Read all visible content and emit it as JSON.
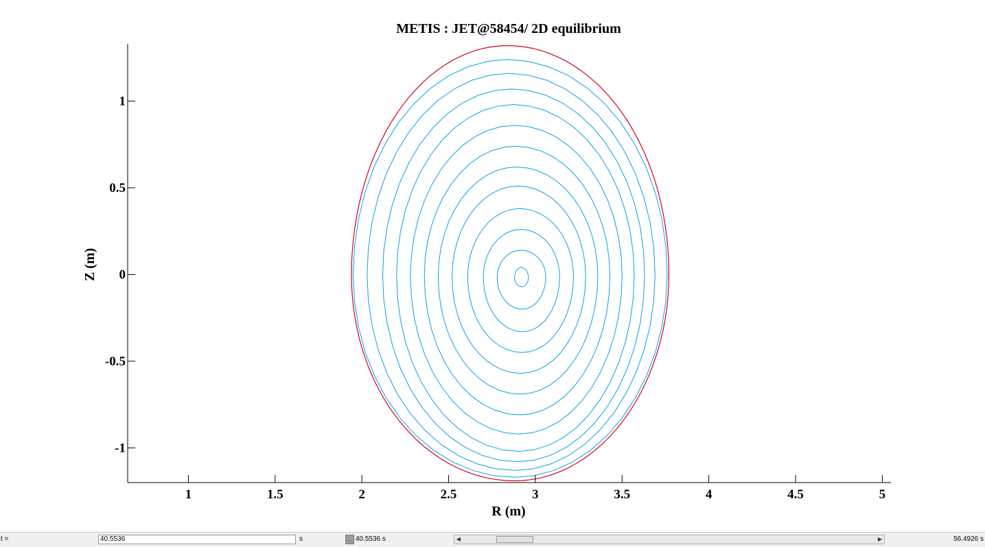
{
  "chart_data": {
    "type": "line",
    "title": "METIS : JET@58454/ 2D equilibrium",
    "xlabel": "R (m)",
    "ylabel": "Z (m)",
    "xlim": [
      0.65,
      5.05
    ],
    "ylim": [
      -1.2,
      1.33
    ],
    "x_ticks": [
      1,
      1.5,
      2,
      2.5,
      3,
      3.5,
      4,
      4.5,
      5
    ],
    "y_ticks": [
      -1,
      -0.5,
      0,
      0.5,
      1
    ],
    "x_tick_labels": [
      "1",
      "1.5",
      "2",
      "2.5",
      "3",
      "3.5",
      "4",
      "4.5",
      "5"
    ],
    "y_tick_labels": [
      "-1",
      "-0.5",
      "0",
      "0.5",
      "1"
    ],
    "grid": false,
    "boundary": {
      "color": "#d0021b",
      "r_min": 1.94,
      "r_max": 3.77,
      "z_max": 1.32,
      "z_min": -1.19,
      "r_top": 2.84,
      "r_bottom": 2.88
    },
    "flux_surfaces": {
      "color": "#0aa0e6",
      "magnetic_axis": {
        "r": 2.92,
        "z": -0.02
      },
      "surfaces": [
        {
          "r_in": 2.88,
          "r_out": 2.96,
          "z_top": 0.04,
          "z_bottom": -0.07
        },
        {
          "r_in": 2.78,
          "r_out": 3.06,
          "z_top": 0.14,
          "z_bottom": -0.2
        },
        {
          "r_in": 2.7,
          "r_out": 3.14,
          "z_top": 0.26,
          "z_bottom": -0.33
        },
        {
          "r_in": 2.61,
          "r_out": 3.22,
          "z_top": 0.38,
          "z_bottom": -0.45
        },
        {
          "r_in": 2.52,
          "r_out": 3.29,
          "z_top": 0.51,
          "z_bottom": -0.57
        },
        {
          "r_in": 2.44,
          "r_out": 3.36,
          "z_top": 0.62,
          "z_bottom": -0.69
        },
        {
          "r_in": 2.36,
          "r_out": 3.43,
          "z_top": 0.74,
          "z_bottom": -0.81
        },
        {
          "r_in": 2.28,
          "r_out": 3.5,
          "z_top": 0.86,
          "z_bottom": -0.92
        },
        {
          "r_in": 2.2,
          "r_out": 3.57,
          "z_top": 0.98,
          "z_bottom": -1.02
        },
        {
          "r_in": 2.12,
          "r_out": 3.63,
          "z_top": 1.07,
          "z_bottom": -1.08
        },
        {
          "r_in": 2.03,
          "r_out": 3.69,
          "z_top": 1.16,
          "z_bottom": -1.13
        },
        {
          "r_in": 1.95,
          "r_out": 3.76,
          "z_top": 1.24,
          "z_bottom": -1.17
        }
      ]
    }
  },
  "controls": {
    "time_label": "t =",
    "time_value": "40.5536",
    "unit": "s",
    "current_time_readout": "40.5536 s",
    "end_time_readout": "56.4926 s",
    "slider_position": 0.09,
    "left_arrow": "◀",
    "right_arrow": "▶"
  }
}
